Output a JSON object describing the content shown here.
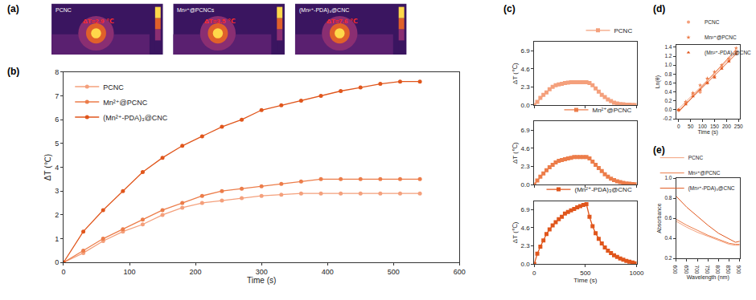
{
  "panel_a": {
    "panel_label": "(a)",
    "images": [
      {
        "title": "PCNC",
        "text": "ΔT=2.9 ℃"
      },
      {
        "title": "Mn²⁺@PCNCs",
        "text": "ΔT=3.5 ℃"
      },
      {
        "title": "(Mn²⁺-PDA)₃@CNC",
        "text": "ΔT=7.6 ℃"
      }
    ]
  },
  "chart_data": [
    {
      "panel_label": "(b)",
      "type": "line",
      "marker": "circle",
      "legend": "upper left",
      "x_label": "Time (s)",
      "y_label": "ΔT (℃)",
      "x": [
        0,
        30,
        60,
        90,
        120,
        150,
        180,
        210,
        240,
        270,
        300,
        330,
        360,
        390,
        420,
        450,
        480,
        510,
        540
      ],
      "xlim": [
        0,
        600
      ],
      "xticks": [
        0,
        100,
        200,
        300,
        400,
        500,
        600
      ],
      "ylim": [
        0,
        8
      ],
      "yticks": [
        0,
        1,
        2,
        3,
        4,
        5,
        6,
        7,
        8
      ],
      "series": [
        {
          "name": "PCNC",
          "color": "#f4a07c",
          "values": [
            0,
            0.4,
            0.9,
            1.3,
            1.6,
            2.0,
            2.3,
            2.5,
            2.6,
            2.7,
            2.8,
            2.85,
            2.9,
            2.9,
            2.9,
            2.9,
            2.9,
            2.9,
            2.9
          ]
        },
        {
          "name": "Mn²⁺@PCNC",
          "color": "#ec7d4a",
          "values": [
            0,
            0.5,
            1.0,
            1.4,
            1.8,
            2.2,
            2.5,
            2.8,
            3.0,
            3.1,
            3.2,
            3.3,
            3.4,
            3.5,
            3.5,
            3.5,
            3.5,
            3.5,
            3.5
          ]
        },
        {
          "name": "(Mn²⁺-PDA)₃@CNC",
          "color": "#e0561c",
          "values": [
            0,
            1.3,
            2.2,
            3.0,
            3.8,
            4.4,
            4.9,
            5.3,
            5.7,
            6.0,
            6.4,
            6.6,
            6.8,
            7.0,
            7.2,
            7.35,
            7.5,
            7.6,
            7.6
          ]
        }
      ]
    },
    {
      "panel_label": "(c)",
      "type": "line",
      "marker": "square",
      "legend": "upper right",
      "tick_labels": "y",
      "y_label": "ΔT (℃)",
      "x": [
        0,
        30,
        60,
        90,
        120,
        150,
        180,
        210,
        240,
        270,
        300,
        330,
        360,
        390,
        420,
        450,
        480,
        510,
        540,
        570,
        600,
        630,
        660,
        690,
        720,
        750,
        780,
        810,
        840,
        870,
        900,
        930,
        960,
        990
      ],
      "xlim": [
        0,
        1000
      ],
      "xticks": [
        0,
        500,
        1000
      ],
      "ylim": [
        0,
        8
      ],
      "yticks": [
        {
          "value": 0,
          "label": "0.0"
        },
        2.3,
        4.6,
        6.9
      ],
      "series": [
        {
          "name": "PCNC",
          "color": "#f4a07c",
          "values": [
            0,
            0.4,
            0.9,
            1.3,
            1.6,
            2.0,
            2.3,
            2.5,
            2.6,
            2.7,
            2.8,
            2.85,
            2.9,
            2.9,
            2.9,
            2.9,
            2.9,
            2.9,
            2.8,
            2.5,
            2.1,
            1.7,
            1.3,
            1.0,
            0.7,
            0.5,
            0.3,
            0.2,
            0.12,
            0.08,
            0.05,
            0.03,
            0.02,
            0.0
          ]
        }
      ]
    },
    {
      "type": "line",
      "marker": "square",
      "legend": "upper right",
      "tick_labels": "y",
      "y_label": "ΔT (℃)",
      "x": [
        0,
        30,
        60,
        90,
        120,
        150,
        180,
        210,
        240,
        270,
        300,
        330,
        360,
        390,
        420,
        450,
        480,
        510,
        540,
        570,
        600,
        630,
        660,
        690,
        720,
        750,
        780,
        810,
        840,
        870,
        900,
        930,
        960,
        990
      ],
      "xlim": [
        0,
        1000
      ],
      "xticks": [
        0,
        500,
        1000
      ],
      "ylim": [
        0,
        8
      ],
      "yticks": [
        {
          "value": 0,
          "label": "0.0"
        },
        2.3,
        4.6,
        6.9
      ],
      "series": [
        {
          "name": "Mn²⁺@PCNC",
          "color": "#ec7d4a",
          "values": [
            0,
            0.5,
            1.0,
            1.4,
            1.8,
            2.2,
            2.5,
            2.8,
            3.0,
            3.1,
            3.2,
            3.3,
            3.4,
            3.5,
            3.5,
            3.5,
            3.5,
            3.5,
            3.3,
            2.9,
            2.5,
            2.1,
            1.7,
            1.3,
            1.0,
            0.75,
            0.55,
            0.4,
            0.3,
            0.2,
            0.14,
            0.1,
            0.06,
            0.03
          ]
        }
      ]
    },
    {
      "type": "line",
      "marker": "square",
      "legend": "upper right",
      "x_label": "Time (s)",
      "y_label": "ΔT (℃)",
      "x": [
        0,
        30,
        60,
        90,
        120,
        150,
        180,
        210,
        240,
        270,
        300,
        330,
        360,
        390,
        420,
        450,
        480,
        510,
        540,
        570,
        600,
        630,
        660,
        690,
        720,
        750,
        780,
        810,
        840,
        870,
        900,
        930,
        960,
        990
      ],
      "xlim": [
        0,
        1000
      ],
      "xticks": [
        0,
        500,
        1000
      ],
      "ylim": [
        0,
        8
      ],
      "yticks": [
        {
          "value": 0,
          "label": "0.0"
        },
        2.3,
        4.6,
        6.9
      ],
      "series": [
        {
          "name": "(Mn²⁺-PDA)₃@CNC",
          "color": "#e0561c",
          "values": [
            0,
            1.3,
            2.2,
            3.0,
            3.8,
            4.4,
            4.9,
            5.3,
            5.7,
            6.0,
            6.4,
            6.6,
            6.8,
            7.0,
            7.2,
            7.35,
            7.5,
            7.6,
            6.0,
            4.8,
            3.9,
            3.2,
            2.6,
            2.1,
            1.7,
            1.4,
            1.1,
            0.9,
            0.7,
            0.55,
            0.4,
            0.3,
            0.2,
            0.1
          ]
        }
      ]
    },
    {
      "panel_label": "(d)",
      "type": "scatter",
      "legend": "upper left",
      "x_label": "Time (s)",
      "y_label": "Ln(θ)",
      "x": [
        0,
        30,
        60,
        90,
        120,
        150,
        180,
        210,
        240
      ],
      "xlim": [
        -10,
        255
      ],
      "xticks": [
        0,
        50,
        100,
        150,
        200,
        250
      ],
      "ylim": [
        -0.2,
        1.45
      ],
      "yticks": [
        -0.2,
        {
          "value": 0,
          "label": "0.0"
        },
        0.2,
        0.4,
        0.6,
        0.8,
        {
          "value": 1,
          "label": "1.0"
        },
        1.2,
        1.4
      ],
      "series": [
        {
          "name": "PCNC",
          "color": "#f4a07c",
          "marker": "circle",
          "values": [
            0,
            0.15,
            0.35,
            0.4,
            0.6,
            0.75,
            0.95,
            1.1,
            1.3
          ]
        },
        {
          "name": "Mn²⁺@PCNC",
          "color": "#ec7d4a",
          "marker": "star",
          "values": [
            0,
            0.18,
            0.38,
            0.55,
            0.7,
            0.85,
            1.0,
            1.15,
            1.38
          ]
        },
        {
          "name": "(Mn²⁺-PDA)₃@CNC",
          "color": "#e0561c",
          "marker": "triangle",
          "values": [
            0,
            0.12,
            0.3,
            0.45,
            0.6,
            0.72,
            0.92,
            1.08,
            1.25
          ]
        },
        {
          "type": "line",
          "color": "#f4a07c",
          "x": [
            0,
            240
          ],
          "values": [
            0.02,
            1.3
          ]
        },
        {
          "type": "line",
          "color": "#ec7d4a",
          "x": [
            0,
            240
          ],
          "values": [
            -0.05,
            1.35
          ]
        },
        {
          "type": "line",
          "color": "#e0561c",
          "x": [
            0,
            240
          ],
          "values": [
            -0.03,
            1.25
          ]
        }
      ]
    },
    {
      "panel_label": "(e)",
      "type": "line",
      "legend": "upper right",
      "x_label": "Wavelength (nm)",
      "y_label": "Absorbance",
      "x": [
        600,
        650,
        700,
        750,
        800,
        850,
        880,
        900
      ],
      "xlim": [
        600,
        900
      ],
      "xticks": [
        600,
        650,
        700,
        750,
        800,
        850,
        900
      ],
      "ylim": [
        0.2,
        1.0
      ],
      "yticks": [
        0.2,
        0.4,
        0.6,
        0.8,
        {
          "value": 1,
          "label": "1.0"
        }
      ],
      "series": [
        {
          "name": "PCNC",
          "color": "#f4a07c",
          "values": [
            0.57,
            0.51,
            0.46,
            0.42,
            0.38,
            0.34,
            0.33,
            0.33
          ]
        },
        {
          "name": "Mn²⁺@PCNC",
          "color": "#ec7d4a",
          "values": [
            0.59,
            0.53,
            0.48,
            0.43,
            0.39,
            0.35,
            0.34,
            0.34
          ]
        },
        {
          "name": "(Mn²⁺-PDA)₃@CNC",
          "color": "#e0561c",
          "values": [
            0.82,
            0.71,
            0.62,
            0.53,
            0.45,
            0.39,
            0.36,
            0.37
          ]
        }
      ]
    }
  ]
}
